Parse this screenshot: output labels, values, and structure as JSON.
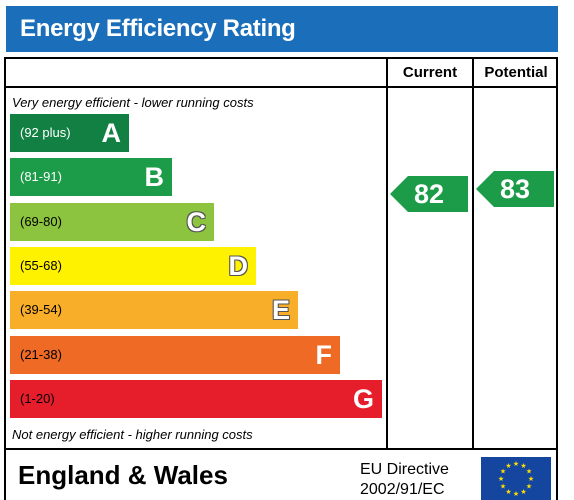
{
  "title": "Energy Efficiency Rating",
  "columns": {
    "current": "Current",
    "potential": "Potential"
  },
  "top_caption": "Very energy efficient - lower running costs",
  "bottom_caption": "Not energy efficient - higher running costs",
  "bands": [
    {
      "range": "(92 plus)",
      "letter": "A",
      "color": "#128042"
    },
    {
      "range": "(81-91)",
      "letter": "B",
      "color": "#1c9b48"
    },
    {
      "range": "(69-80)",
      "letter": "C",
      "color": "#8cc43f"
    },
    {
      "range": "(55-68)",
      "letter": "D",
      "color": "#fff200"
    },
    {
      "range": "(39-54)",
      "letter": "E",
      "color": "#f8ae28"
    },
    {
      "range": "(21-38)",
      "letter": "F",
      "color": "#ee6a25"
    },
    {
      "range": "(1-20)",
      "letter": "G",
      "color": "#e61d2b"
    }
  ],
  "current": {
    "value": "82",
    "color": "#1c9b48"
  },
  "potential": {
    "value": "83",
    "color": "#1c9b48"
  },
  "footer": {
    "region": "England & Wales",
    "directive_line1": "EU Directive",
    "directive_line2": "2002/91/EC"
  },
  "icons": {
    "flag": "eu-flag-icon"
  }
}
